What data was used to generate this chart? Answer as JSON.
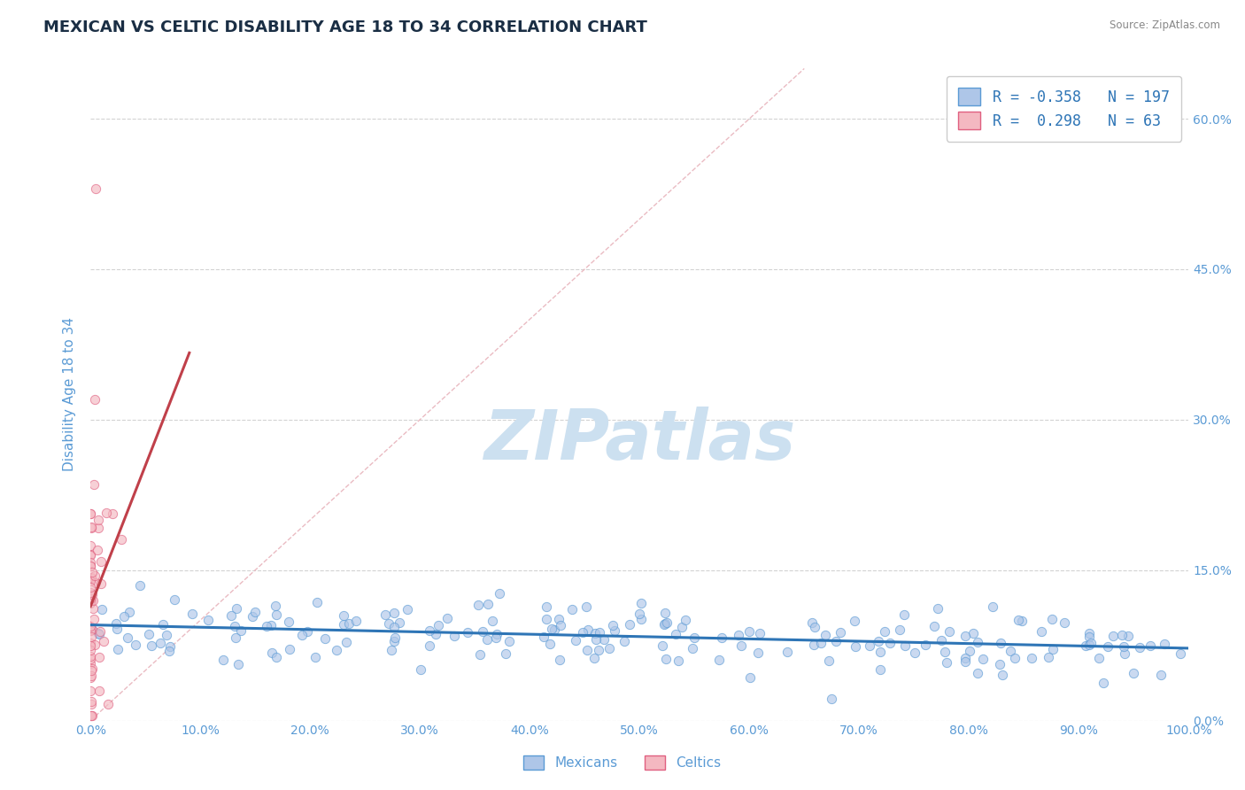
{
  "title": "MEXICAN VS CELTIC DISABILITY AGE 18 TO 34 CORRELATION CHART",
  "source_text": "Source: ZipAtlas.com",
  "ylabel": "Disability Age 18 to 34",
  "xlabel": "",
  "xlim": [
    0.0,
    1.0
  ],
  "ylim": [
    0.0,
    0.65
  ],
  "xticks": [
    0.0,
    0.1,
    0.2,
    0.3,
    0.4,
    0.5,
    0.6,
    0.7,
    0.8,
    0.9,
    1.0
  ],
  "xticklabels": [
    "0.0%",
    "10.0%",
    "20.0%",
    "30.0%",
    "40.0%",
    "50.0%",
    "60.0%",
    "70.0%",
    "80.0%",
    "90.0%",
    "100.0%"
  ],
  "yticks": [
    0.0,
    0.15,
    0.3,
    0.45,
    0.6
  ],
  "yticklabels_right": [
    "0.0%",
    "15.0%",
    "30.0%",
    "45.0%",
    "60.0%"
  ],
  "blue_R": -0.358,
  "blue_N": 197,
  "pink_R": 0.298,
  "pink_N": 63,
  "blue_color": "#aec6e8",
  "blue_edge": "#5b9bd5",
  "pink_color": "#f4b8c1",
  "pink_edge": "#e06080",
  "blue_line_color": "#2e75b6",
  "pink_line_color": "#c0404a",
  "diag_line_color": "#e8b4bc",
  "watermark_text": "ZIPatlas",
  "watermark_color": "#cce0f0",
  "legend_R_color": "#2e75b6",
  "legend_label_blue": "Mexicans",
  "legend_label_pink": "Celtics",
  "title_color": "#1a2e44",
  "title_fontsize": 13,
  "axis_color": "#5b9bd5",
  "grid_color": "#c8c8c8",
  "background_color": "#ffffff"
}
